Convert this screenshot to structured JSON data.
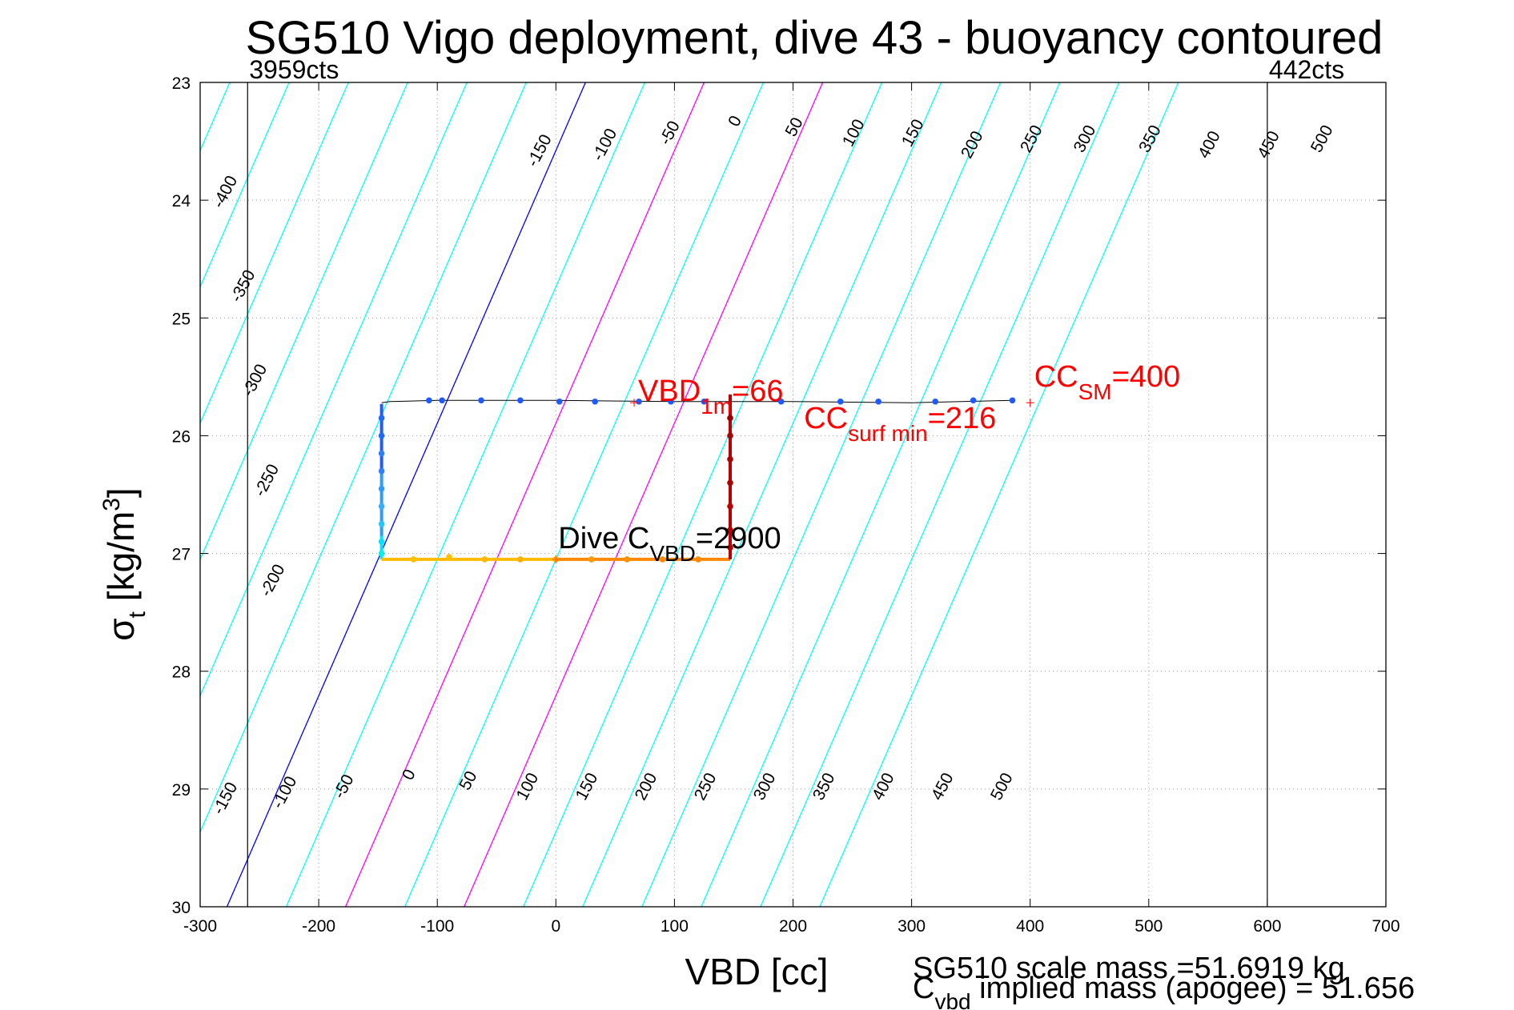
{
  "chart_data": {
    "type": "scatter",
    "title": "SG510 Vigo deployment, dive 43 - buoyancy contoured",
    "xlabel": "VBD [cc]",
    "ylabel": {
      "main": "σ",
      "sub": "t",
      "unit": "[kg/m",
      "sup": "3",
      "close": "]"
    },
    "xlim": [
      -300,
      700
    ],
    "ylim": [
      23,
      30
    ],
    "y_reversed": true,
    "grid": true,
    "xticks": [
      -300,
      -200,
      -100,
      0,
      100,
      200,
      300,
      400,
      500,
      600,
      700
    ],
    "yticks": [
      23,
      24,
      25,
      26,
      27,
      28,
      29,
      30
    ],
    "contour_slope_cc_per_sigma": 43.2,
    "contours": [
      {
        "level": -400,
        "top": -375,
        "color": "#00ffff",
        "label": "-400"
      },
      {
        "level": -350,
        "top": -325,
        "color": "#00ffff",
        "label": "-350"
      },
      {
        "level": -300,
        "top": -275,
        "color": "#00ffff",
        "label": "-300"
      },
      {
        "level": -250,
        "top": -225,
        "color": "#00ffff",
        "label": "-250"
      },
      {
        "level": -200,
        "top": -175,
        "color": "#00ffff",
        "label": "-200"
      },
      {
        "level": -150,
        "top": -125,
        "color": "#00ffff",
        "label": "-150"
      },
      {
        "level": -100,
        "top": -75,
        "color": "#00ffff",
        "label": "-100"
      },
      {
        "level": -50,
        "top": -25,
        "color": "#00ffff",
        "label": "-50"
      },
      {
        "level": 0,
        "top": 25,
        "color": "#0000ff",
        "label": "0"
      },
      {
        "level": 50,
        "top": 75,
        "color": "#00ffff",
        "label": "50"
      },
      {
        "level": 100,
        "top": 125,
        "color": "#ff00ff",
        "label": "100"
      },
      {
        "level": 150,
        "top": 175,
        "color": "#00ffff",
        "label": "150"
      },
      {
        "level": 200,
        "top": 225,
        "color": "#ff00ff",
        "label": "200"
      },
      {
        "level": 250,
        "top": 275,
        "color": "#00ffff",
        "label": "250"
      },
      {
        "level": 300,
        "top": 325,
        "color": "#00ffff",
        "label": "300"
      },
      {
        "level": 350,
        "top": 375,
        "color": "#00ffff",
        "label": "350"
      },
      {
        "level": 400,
        "top": 425,
        "color": "#00ffff",
        "label": "400"
      },
      {
        "level": 450,
        "top": 475,
        "color": "#00ffff",
        "label": "450"
      },
      {
        "level": 500,
        "top": 525,
        "color": "#00ffff",
        "label": "500"
      }
    ],
    "contour_labels_top": [
      {
        "text": "-400",
        "x": -275,
        "y": 23.95
      },
      {
        "text": "-350",
        "x": -260,
        "y": 24.75
      },
      {
        "text": "-300",
        "x": -250,
        "y": 25.55
      },
      {
        "text": "-250",
        "x": -240,
        "y": 26.4
      },
      {
        "text": "-200",
        "x": -235,
        "y": 27.25
      },
      {
        "text": "-150",
        "x": -10,
        "y": 23.6
      },
      {
        "text": "-100",
        "x": 45,
        "y": 23.55
      },
      {
        "text": "-50",
        "x": 100,
        "y": 23.45
      },
      {
        "text": "0",
        "x": 155,
        "y": 23.35
      },
      {
        "text": "50",
        "x": 205,
        "y": 23.4
      },
      {
        "text": "100",
        "x": 255,
        "y": 23.45
      },
      {
        "text": "150",
        "x": 305,
        "y": 23.45
      },
      {
        "text": "200",
        "x": 355,
        "y": 23.55
      },
      {
        "text": "250",
        "x": 405,
        "y": 23.5
      },
      {
        "text": "300",
        "x": 450,
        "y": 23.5
      },
      {
        "text": "350",
        "x": 505,
        "y": 23.5
      },
      {
        "text": "400",
        "x": 555,
        "y": 23.55
      },
      {
        "text": "450",
        "x": 605,
        "y": 23.55
      },
      {
        "text": "500",
        "x": 650,
        "y": 23.5
      }
    ],
    "contour_labels_bottom": [
      {
        "text": "-150",
        "x": -275,
        "y": 29.1
      },
      {
        "text": "-100",
        "x": -225,
        "y": 29.05
      },
      {
        "text": "-50",
        "x": -175,
        "y": 29.0
      },
      {
        "text": "0",
        "x": -120,
        "y": 28.9
      },
      {
        "text": "50",
        "x": -70,
        "y": 28.95
      },
      {
        "text": "100",
        "x": -20,
        "y": 29.0
      },
      {
        "text": "150",
        "x": 30,
        "y": 29.0
      },
      {
        "text": "200",
        "x": 80,
        "y": 29.0
      },
      {
        "text": "250",
        "x": 130,
        "y": 29.0
      },
      {
        "text": "300",
        "x": 180,
        "y": 29.0
      },
      {
        "text": "350",
        "x": 230,
        "y": 29.0
      },
      {
        "text": "400",
        "x": 280,
        "y": 29.0
      },
      {
        "text": "450",
        "x": 330,
        "y": 29.0
      },
      {
        "text": "500",
        "x": 380,
        "y": 29.0
      }
    ],
    "vertical_lines": [
      {
        "x": -260,
        "label": "3959cts"
      },
      {
        "x": 600,
        "label": "442cts"
      }
    ],
    "trace_line": [
      [
        -147,
        25.72
      ],
      [
        -140,
        25.71
      ],
      [
        -100,
        25.7
      ],
      [
        0,
        25.7
      ],
      [
        100,
        25.71
      ],
      [
        200,
        25.71
      ],
      [
        300,
        25.72
      ],
      [
        385,
        25.7
      ]
    ],
    "dive_path": {
      "segments": [
        {
          "color": "#1e5aff",
          "points": [
            [
              -147,
              25.73
            ],
            [
              -147,
              26.3
            ]
          ]
        },
        {
          "color": "#2e9cff",
          "points": [
            [
              -147,
              26.3
            ],
            [
              -147,
              26.85
            ]
          ]
        },
        {
          "color": "#00e6ff",
          "points": [
            [
              -147,
              26.85
            ],
            [
              -147,
              27.05
            ]
          ]
        },
        {
          "color": "#ffbb00",
          "points": [
            [
              -147,
              27.05
            ],
            [
              0,
              27.05
            ]
          ]
        },
        {
          "color": "#ff8800",
          "points": [
            [
              0,
              27.05
            ],
            [
              147,
              27.05
            ]
          ]
        },
        {
          "color": "#bb0000",
          "points": [
            [
              147,
              27.05
            ],
            [
              147,
              25.65
            ]
          ]
        }
      ],
      "points": [
        {
          "x": 385,
          "y": 25.7,
          "color": "#1e5aff"
        },
        {
          "x": 352,
          "y": 25.7,
          "color": "#1e5aff"
        },
        {
          "x": 320,
          "y": 25.71,
          "color": "#1e5aff"
        },
        {
          "x": 272,
          "y": 25.71,
          "color": "#1e5aff"
        },
        {
          "x": 240,
          "y": 25.71,
          "color": "#1e5aff"
        },
        {
          "x": 190,
          "y": 25.71,
          "color": "#1e5aff"
        },
        {
          "x": 125,
          "y": 25.71,
          "color": "#1e5aff"
        },
        {
          "x": 97,
          "y": 25.71,
          "color": "#1e5aff"
        },
        {
          "x": 70,
          "y": 25.71,
          "color": "#1e5aff"
        },
        {
          "x": 33,
          "y": 25.71,
          "color": "#1e5aff"
        },
        {
          "x": 3,
          "y": 25.71,
          "color": "#1e5aff"
        },
        {
          "x": -30,
          "y": 25.7,
          "color": "#1e5aff"
        },
        {
          "x": -63,
          "y": 25.7,
          "color": "#1e5aff"
        },
        {
          "x": -96,
          "y": 25.7,
          "color": "#1e5aff"
        },
        {
          "x": -107,
          "y": 25.7,
          "color": "#1e5aff"
        },
        {
          "x": -147,
          "y": 25.85,
          "color": "#1e6aff"
        },
        {
          "x": -147,
          "y": 26.0,
          "color": "#1e6aff"
        },
        {
          "x": -147,
          "y": 26.15,
          "color": "#2a80ff"
        },
        {
          "x": -147,
          "y": 26.3,
          "color": "#2a80ff"
        },
        {
          "x": -147,
          "y": 26.45,
          "color": "#2e9cff"
        },
        {
          "x": -147,
          "y": 26.6,
          "color": "#30b0ff"
        },
        {
          "x": -147,
          "y": 26.75,
          "color": "#20c8ff"
        },
        {
          "x": -147,
          "y": 26.9,
          "color": "#00e6ff"
        },
        {
          "x": -147,
          "y": 27.0,
          "color": "#00f0f0"
        },
        {
          "x": -120,
          "y": 27.05,
          "color": "#ffc000"
        },
        {
          "x": -90,
          "y": 27.03,
          "color": "#ffc000"
        },
        {
          "x": -60,
          "y": 27.05,
          "color": "#ffb800"
        },
        {
          "x": -30,
          "y": 27.05,
          "color": "#ffb000"
        },
        {
          "x": 0,
          "y": 27.05,
          "color": "#ffa500"
        },
        {
          "x": 30,
          "y": 27.05,
          "color": "#ff9900"
        },
        {
          "x": 60,
          "y": 27.05,
          "color": "#ff9000"
        },
        {
          "x": 90,
          "y": 27.05,
          "color": "#ff8c00"
        },
        {
          "x": 120,
          "y": 27.05,
          "color": "#ff8800"
        },
        {
          "x": 147,
          "y": 26.95,
          "color": "#bb0000"
        },
        {
          "x": 147,
          "y": 26.8,
          "color": "#bb0000"
        },
        {
          "x": 147,
          "y": 26.6,
          "color": "#bb0000"
        },
        {
          "x": 147,
          "y": 26.4,
          "color": "#aa0000"
        },
        {
          "x": 147,
          "y": 26.2,
          "color": "#aa0000"
        },
        {
          "x": 147,
          "y": 26.0,
          "color": "#aa0000"
        },
        {
          "x": 147,
          "y": 25.85,
          "color": "#990000"
        }
      ]
    },
    "annotations": {
      "vbd_1m": {
        "main": "VBD",
        "sub": "1m",
        "tail": "=66",
        "x": 66,
        "y": 25.72
      },
      "cc_surf_min": {
        "main": "CC",
        "sub": "surf min",
        "tail": "=216",
        "x": 216,
        "y": 25.72
      },
      "cc_sm": {
        "main": "CC",
        "sub": "SM",
        "tail": "=400",
        "x": 400,
        "y": 25.72
      },
      "dive_cvbd": {
        "main": "Dive C",
        "sub": "VBD",
        "tail": "=2900",
        "x": 0,
        "y": 27.05
      }
    },
    "footer": {
      "line1": "SG510 scale mass =51.6919 kg",
      "line2_main": "C",
      "line2_sub": "vbd",
      "line2_tail": " implied mass (apogee) = 51.656"
    },
    "colors": {
      "grid": "#999999",
      "cyan": "#00ffff",
      "blue": "#0000ff",
      "magenta": "#ff00ff",
      "red_text": "#ff0000"
    }
  }
}
